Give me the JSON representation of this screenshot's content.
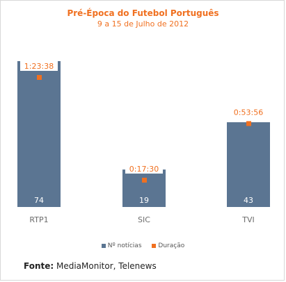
{
  "title": "Pré-Época do Futebol Português",
  "subtitle": "9 a 15 de Julho de 2012",
  "colors": {
    "bar": "#5b7592",
    "marker": "#f07020",
    "title": "#f07020"
  },
  "legend": {
    "series_1": "Nº notícias",
    "series_2": "Duração"
  },
  "source": {
    "label": "Fonte:",
    "text": " MediaMonitor, Telenews"
  },
  "chart_data": {
    "type": "bar",
    "categories": [
      "RTP1",
      "SIC",
      "TVI"
    ],
    "series": [
      {
        "name": "Nº notícias",
        "values": [
          74,
          19,
          43
        ]
      },
      {
        "name": "Duração",
        "values": [
          "1:23:38",
          "0:17:30",
          "0:53:56"
        ],
        "seconds": [
          5018,
          1050,
          3236
        ]
      }
    ],
    "legend_position": "bottom"
  }
}
